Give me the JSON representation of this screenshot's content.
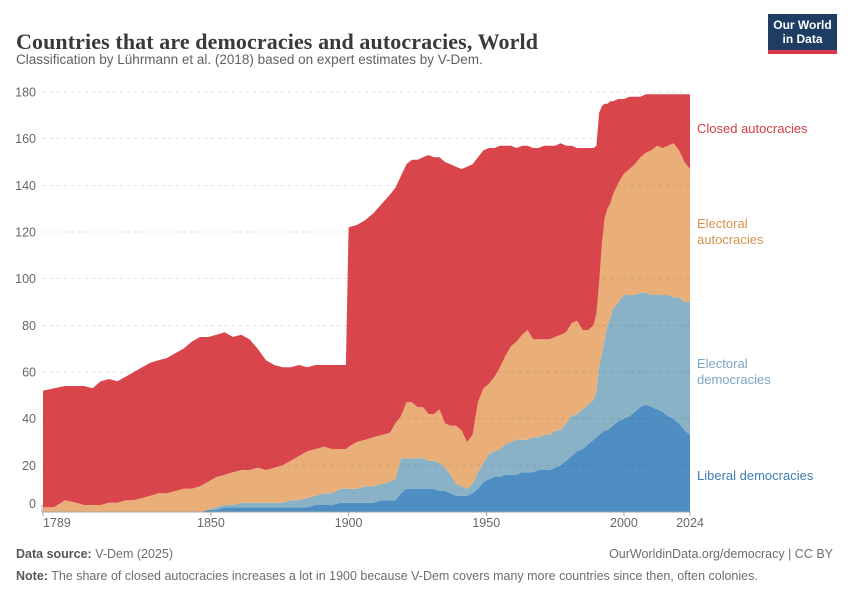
{
  "header": {
    "title": "Countries that are democracies and autocracies, World",
    "subtitle": "Classification by Lührmann et al. (2018) based on expert estimates by V-Dem.",
    "logo": {
      "line1": "Our World",
      "line2": "in Data"
    }
  },
  "chart_data": {
    "type": "area",
    "stacked": true,
    "title": "Countries that are democracies and autocracies, World",
    "xlabel": "",
    "ylabel": "",
    "x_range": [
      1789,
      2024
    ],
    "ylim": [
      0,
      180
    ],
    "yticks": [
      0,
      20,
      40,
      60,
      80,
      100,
      120,
      140,
      160,
      180
    ],
    "xticks": [
      1789,
      1850,
      1900,
      1950,
      2000,
      2024
    ],
    "grid": true,
    "legend_position": "right",
    "columns": [
      "year",
      "Liberal democracies",
      "Electoral democracies",
      "Electoral autocracies",
      "Closed autocracies"
    ],
    "series": [
      {
        "name": "Liberal democracies",
        "color": "#4f8ec3",
        "label_color": "#3d7db3"
      },
      {
        "name": "Electoral democracies",
        "color": "#8ab2c6",
        "label_color": "#7aa6c4"
      },
      {
        "name": "Electoral autocracies",
        "color": "#eaaf78",
        "label_color": "#d6914f"
      },
      {
        "name": "Closed autocracies",
        "color": "#d8464c",
        "label_color": "#ce3e49"
      }
    ],
    "points": [
      [
        1789,
        0,
        0,
        2,
        50
      ],
      [
        1793,
        0,
        0,
        2,
        51
      ],
      [
        1797,
        0,
        0,
        5,
        49
      ],
      [
        1801,
        0,
        0,
        4,
        50
      ],
      [
        1804,
        0,
        0,
        3,
        51
      ],
      [
        1807,
        0,
        0,
        3,
        50
      ],
      [
        1810,
        0,
        0,
        3,
        53
      ],
      [
        1813,
        0,
        0,
        4,
        53
      ],
      [
        1816,
        0,
        0,
        4,
        52
      ],
      [
        1819,
        0,
        0,
        5,
        53
      ],
      [
        1822,
        0,
        0,
        5,
        55
      ],
      [
        1825,
        0,
        0,
        6,
        56
      ],
      [
        1828,
        0,
        0,
        7,
        57
      ],
      [
        1831,
        0,
        0,
        8,
        57
      ],
      [
        1834,
        0,
        0,
        8,
        58
      ],
      [
        1837,
        0,
        0,
        9,
        59
      ],
      [
        1840,
        0,
        0,
        10,
        60
      ],
      [
        1843,
        0,
        0,
        10,
        63
      ],
      [
        1846,
        0,
        0,
        11,
        64
      ],
      [
        1849,
        1,
        0,
        12,
        62
      ],
      [
        1852,
        1,
        1,
        13,
        61
      ],
      [
        1855,
        2,
        1,
        13,
        61
      ],
      [
        1858,
        2,
        1,
        14,
        58
      ],
      [
        1861,
        2,
        2,
        14,
        58
      ],
      [
        1864,
        2,
        2,
        14,
        56
      ],
      [
        1867,
        2,
        2,
        15,
        51
      ],
      [
        1870,
        2,
        2,
        14,
        47
      ],
      [
        1873,
        2,
        2,
        15,
        44
      ],
      [
        1876,
        2,
        2,
        16,
        42
      ],
      [
        1879,
        2,
        3,
        17,
        40
      ],
      [
        1882,
        2,
        3,
        19,
        39
      ],
      [
        1885,
        2,
        4,
        20,
        36
      ],
      [
        1888,
        3,
        4,
        20,
        36
      ],
      [
        1891,
        3,
        5,
        20,
        35
      ],
      [
        1894,
        3,
        5,
        19,
        36
      ],
      [
        1897,
        4,
        6,
        17,
        36
      ],
      [
        1899,
        4,
        6,
        17,
        36
      ],
      [
        1900,
        4,
        6,
        18,
        94
      ],
      [
        1903,
        4,
        6,
        20,
        93
      ],
      [
        1906,
        4,
        7,
        20,
        94
      ],
      [
        1909,
        4,
        7,
        21,
        96
      ],
      [
        1912,
        5,
        7,
        21,
        99
      ],
      [
        1915,
        5,
        8,
        21,
        102
      ],
      [
        1917,
        5,
        9,
        24,
        101
      ],
      [
        1919,
        8,
        15,
        18,
        103
      ],
      [
        1921,
        10,
        13,
        24,
        102
      ],
      [
        1923,
        10,
        13,
        24,
        104
      ],
      [
        1925,
        10,
        13,
        22,
        106
      ],
      [
        1927,
        10,
        13,
        22,
        107
      ],
      [
        1929,
        10,
        12,
        20,
        111
      ],
      [
        1931,
        10,
        12,
        20,
        110
      ],
      [
        1933,
        9,
        12,
        23,
        108
      ],
      [
        1935,
        9,
        10,
        19,
        112
      ],
      [
        1937,
        8,
        8,
        21,
        112
      ],
      [
        1939,
        7,
        5,
        25,
        111
      ],
      [
        1941,
        7,
        4,
        24,
        112
      ],
      [
        1943,
        7,
        3,
        20,
        118
      ],
      [
        1945,
        8,
        4,
        21,
        116
      ],
      [
        1947,
        10,
        7,
        30,
        105
      ],
      [
        1949,
        13,
        8,
        32,
        102
      ],
      [
        1951,
        14,
        11,
        30,
        101
      ],
      [
        1953,
        15,
        11,
        32,
        98
      ],
      [
        1955,
        15,
        12,
        35,
        95
      ],
      [
        1957,
        16,
        13,
        38,
        90
      ],
      [
        1959,
        16,
        14,
        41,
        86
      ],
      [
        1961,
        16,
        15,
        42,
        83
      ],
      [
        1963,
        17,
        14,
        45,
        81
      ],
      [
        1965,
        17,
        14,
        47,
        79
      ],
      [
        1967,
        17,
        15,
        42,
        82
      ],
      [
        1969,
        18,
        14,
        42,
        82
      ],
      [
        1971,
        18,
        15,
        41,
        83
      ],
      [
        1973,
        18,
        15,
        41,
        83
      ],
      [
        1975,
        19,
        16,
        40,
        82
      ],
      [
        1977,
        20,
        15,
        41,
        82
      ],
      [
        1979,
        22,
        16,
        39,
        80
      ],
      [
        1981,
        24,
        17,
        40,
        76
      ],
      [
        1983,
        26,
        16,
        40,
        74
      ],
      [
        1985,
        27,
        17,
        34,
        78
      ],
      [
        1987,
        29,
        17,
        32,
        78
      ],
      [
        1989,
        31,
        17,
        32,
        76
      ],
      [
        1990,
        32,
        20,
        33,
        72
      ],
      [
        1991,
        33,
        29,
        36,
        73
      ],
      [
        1992,
        34,
        34,
        47,
        59
      ],
      [
        1993,
        35,
        39,
        52,
        49
      ],
      [
        1994,
        35,
        45,
        50,
        45
      ],
      [
        1995,
        36,
        47,
        49,
        44
      ],
      [
        1996,
        37,
        50,
        49,
        40
      ],
      [
        1998,
        39,
        51,
        51,
        36
      ],
      [
        2000,
        40,
        53,
        52,
        32
      ],
      [
        2002,
        41,
        52,
        54,
        31
      ],
      [
        2004,
        43,
        50,
        56,
        29
      ],
      [
        2006,
        45,
        49,
        58,
        26
      ],
      [
        2008,
        46,
        48,
        60,
        25
      ],
      [
        2010,
        45,
        48,
        62,
        24
      ],
      [
        2012,
        44,
        49,
        64,
        22
      ],
      [
        2014,
        43,
        50,
        63,
        23
      ],
      [
        2016,
        41,
        52,
        64,
        22
      ],
      [
        2018,
        40,
        52,
        66,
        21
      ],
      [
        2020,
        38,
        54,
        63,
        24
      ],
      [
        2022,
        35,
        55,
        60,
        29
      ],
      [
        2024,
        33,
        57,
        57,
        32
      ]
    ]
  },
  "footer": {
    "source_label": "Data source:",
    "source_text": " V-Dem (2025)",
    "right_text": "OurWorldinData.org/democracy | CC BY",
    "note_label": "Note:",
    "note_text": " The share of closed autocracies increases a lot in 1900 because V-Dem covers many more countries since then, often colonies."
  }
}
